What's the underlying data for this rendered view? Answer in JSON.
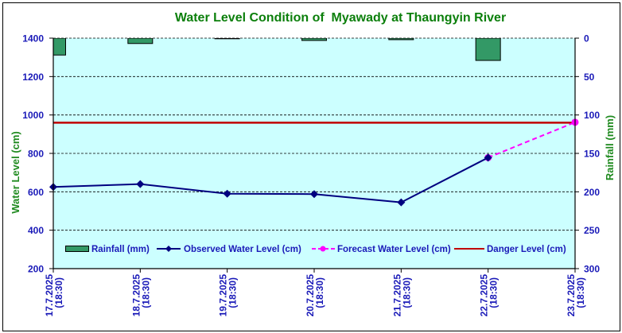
{
  "chart_data": {
    "type": "line",
    "title": "Water Level Condition of  Myawady at Thaungyin River",
    "categories": [
      {
        "date": "17.7.2025",
        "time": "(18:30)"
      },
      {
        "date": "18.7.2025",
        "time": "(18:30)"
      },
      {
        "date": "19.7.2025",
        "time": "(18:30)"
      },
      {
        "date": "20.7.2025",
        "time": "(18:30)"
      },
      {
        "date": "21.7.2025",
        "time": "(18:30)"
      },
      {
        "date": "22.7.2025",
        "time": "(18:30)"
      },
      {
        "date": "23.7.2025",
        "time": "(18:30)"
      }
    ],
    "y_left": {
      "label": "Water Level (cm)",
      "range": [
        200,
        1400
      ],
      "ticks": [
        200,
        400,
        600,
        800,
        1000,
        1200,
        1400
      ]
    },
    "y_right": {
      "label": "Rainfall (mm)",
      "range": [
        0,
        300
      ],
      "reversed": true,
      "ticks": [
        0,
        50,
        100,
        150,
        200,
        250,
        300
      ]
    },
    "series": [
      {
        "name": "Rainfall (mm)",
        "type": "bar",
        "axis": "right",
        "color": "#339966",
        "values": [
          22,
          7,
          0.5,
          3,
          2,
          29,
          null
        ]
      },
      {
        "name": "Observed Water Level (cm)",
        "type": "line",
        "axis": "left",
        "color": "#000080",
        "marker": "diamond",
        "values": [
          625,
          640,
          590,
          588,
          545,
          778,
          null
        ]
      },
      {
        "name": "Forecast Water Level (cm)",
        "type": "line",
        "axis": "left",
        "color": "#FF00FF",
        "marker": "circle",
        "dashed": true,
        "values": [
          null,
          null,
          null,
          null,
          null,
          778,
          962
        ]
      },
      {
        "name": "Danger Level (cm)",
        "type": "line",
        "axis": "left",
        "color": "#C00000",
        "values": [
          960,
          960,
          960,
          960,
          960,
          960,
          960
        ]
      }
    ],
    "plot_background": "#CCFFFF",
    "grid": true,
    "legend_position": "bottom-inside"
  }
}
